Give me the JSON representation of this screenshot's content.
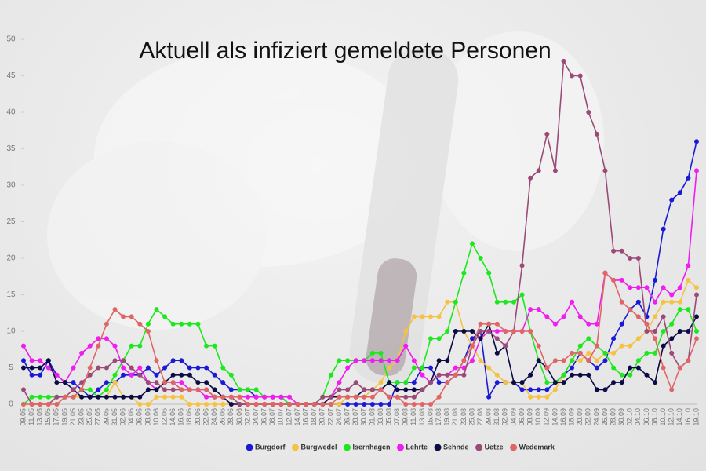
{
  "chart_data": {
    "type": "line",
    "title": "Aktuell als infiziert gemeldete Personen",
    "categories": [
      "09.05",
      "11.05",
      "13.05",
      "15.05",
      "17.05",
      "19.05",
      "21.05",
      "23.05",
      "25.05",
      "27.05",
      "29.05",
      "31.05",
      "02.06",
      "04.06",
      "06.06",
      "08.06",
      "10.06",
      "12.06",
      "14.06",
      "16.06",
      "18.06",
      "20.06",
      "22.06",
      "24.06",
      "26.06",
      "28.06",
      "30.06",
      "02.07",
      "04.07",
      "06.07",
      "08.07",
      "10.07",
      "12.07",
      "14.07",
      "16.07",
      "18.07",
      "20.07",
      "22.07",
      "24.07",
      "26.07",
      "28.07",
      "30.07",
      "01.08",
      "03.08",
      "05.08",
      "07.08",
      "09.08",
      "11.08",
      "13.08",
      "15.08",
      "17.08",
      "19.08",
      "21.08",
      "23.08",
      "25.08",
      "27.08",
      "29.08",
      "31.08",
      "02.09",
      "04.09",
      "06.09",
      "08.09",
      "10.09",
      "12.09",
      "14.09",
      "16.09",
      "18.09",
      "20.09",
      "22.09",
      "24.09",
      "26.09",
      "28.09",
      "30.09",
      "02.10",
      "04.10",
      "06.10",
      "08.10",
      "10.10",
      "12.10",
      "14.10",
      "16.10",
      "19.10"
    ],
    "series": [
      {
        "name": "Burgdorf",
        "color": "#1a1ad6",
        "values": [
          6,
          4,
          4,
          6,
          4,
          3,
          3,
          2,
          1,
          2,
          3,
          3,
          4,
          4,
          4,
          5,
          4,
          5,
          6,
          6,
          5,
          5,
          5,
          4,
          3,
          2,
          2,
          2,
          1,
          1,
          1,
          1,
          0,
          0,
          0,
          0,
          0,
          0,
          0,
          0,
          0,
          0,
          0,
          0,
          0,
          3,
          3,
          3,
          5,
          5,
          3,
          3,
          4,
          6,
          9,
          10,
          1,
          3,
          3,
          3,
          2,
          2,
          2,
          2,
          3,
          4,
          5,
          7,
          6,
          5,
          6,
          9,
          11,
          13,
          14,
          12,
          17,
          24,
          28,
          29,
          31,
          36
        ]
      },
      {
        "name": "Burgwedel",
        "color": "#f5c242",
        "values": [
          0,
          0,
          0,
          0,
          0,
          1,
          1,
          1,
          1,
          1,
          1,
          3,
          1,
          1,
          0,
          0,
          1,
          1,
          1,
          1,
          0,
          0,
          0,
          0,
          0,
          0,
          0,
          0,
          0,
          0,
          0,
          0,
          0,
          0,
          0,
          0,
          0,
          0,
          0,
          1,
          1,
          1,
          2,
          3,
          5,
          6,
          10,
          12,
          12,
          12,
          12,
          14,
          14,
          10,
          8,
          6,
          5,
          4,
          3,
          3,
          3,
          1,
          1,
          1,
          2,
          4,
          6,
          6,
          7,
          6,
          7,
          7,
          8,
          8,
          9,
          10,
          12,
          14,
          14,
          14,
          17,
          16
        ]
      },
      {
        "name": "Isernhagen",
        "color": "#1de81d",
        "values": [
          0,
          1,
          1,
          1,
          1,
          1,
          1,
          2,
          2,
          1,
          2,
          4,
          6,
          8,
          8,
          11,
          13,
          12,
          11,
          11,
          11,
          11,
          8,
          8,
          5,
          4,
          2,
          2,
          2,
          1,
          1,
          1,
          0,
          0,
          0,
          0,
          1,
          4,
          6,
          6,
          6,
          6,
          7,
          7,
          3,
          3,
          3,
          5,
          5,
          9,
          9,
          10,
          14,
          18,
          22,
          20,
          18,
          14,
          14,
          14,
          15,
          10,
          6,
          3,
          3,
          4,
          6,
          8,
          9,
          8,
          7,
          5,
          4,
          4,
          6,
          7,
          7,
          10,
          11,
          13,
          13,
          10
        ]
      },
      {
        "name": "Lehrte",
        "color": "#f01cf0",
        "values": [
          8,
          6,
          6,
          5,
          4,
          3,
          5,
          7,
          8,
          9,
          9,
          8,
          5,
          4,
          5,
          3,
          2,
          3,
          3,
          3,
          2,
          2,
          1,
          1,
          1,
          1,
          1,
          1,
          1,
          1,
          1,
          1,
          1,
          0,
          0,
          0,
          0,
          1,
          3,
          5,
          6,
          6,
          6,
          6,
          6,
          6,
          8,
          6,
          4,
          3,
          4,
          4,
          5,
          5,
          6,
          9,
          10,
          10,
          10,
          10,
          10,
          13,
          13,
          12,
          11,
          12,
          14,
          12,
          11,
          11,
          18,
          17,
          17,
          16,
          16,
          16,
          14,
          16,
          15,
          16,
          19,
          32
        ]
      },
      {
        "name": "Sehnde",
        "color": "#0b0b45",
        "values": [
          5,
          5,
          5,
          6,
          3,
          3,
          2,
          1,
          1,
          1,
          1,
          1,
          1,
          1,
          1,
          2,
          2,
          3,
          4,
          4,
          4,
          3,
          3,
          2,
          1,
          0,
          0,
          0,
          0,
          0,
          0,
          0,
          0,
          0,
          0,
          0,
          0,
          1,
          1,
          1,
          1,
          2,
          2,
          2,
          3,
          2,
          2,
          2,
          2,
          3,
          6,
          6,
          10,
          10,
          10,
          9,
          11,
          7,
          8,
          3,
          3,
          4,
          6,
          5,
          3,
          3,
          4,
          4,
          4,
          2,
          2,
          3,
          3,
          5,
          5,
          4,
          3,
          8,
          9,
          10,
          10,
          12
        ]
      },
      {
        "name": "Uetze",
        "color": "#9b4a78",
        "values": [
          2,
          0,
          0,
          0,
          1,
          1,
          2,
          3,
          4,
          5,
          5,
          6,
          6,
          5,
          4,
          3,
          3,
          2,
          2,
          2,
          2,
          2,
          2,
          1,
          1,
          1,
          0,
          0,
          0,
          0,
          0,
          0,
          0,
          0,
          0,
          0,
          1,
          1,
          2,
          2,
          3,
          2,
          2,
          2,
          1,
          1,
          1,
          1,
          2,
          3,
          4,
          4,
          4,
          4,
          8,
          10,
          10,
          9,
          8,
          10,
          19,
          31,
          32,
          37,
          32,
          47,
          45,
          45,
          40,
          37,
          32,
          21,
          21,
          20,
          20,
          10,
          10,
          12,
          7,
          5,
          6,
          15
        ]
      },
      {
        "name": "Wedemark",
        "color": "#e06666",
        "values": [
          0,
          0,
          0,
          0,
          0,
          1,
          1,
          2,
          5,
          8,
          11,
          13,
          12,
          12,
          11,
          10,
          6,
          3,
          3,
          2,
          2,
          2,
          2,
          1,
          1,
          1,
          1,
          0,
          0,
          0,
          0,
          0,
          0,
          0,
          0,
          0,
          0,
          0,
          1,
          1,
          1,
          1,
          1,
          2,
          1,
          1,
          0,
          0,
          0,
          0,
          1,
          3,
          4,
          6,
          8,
          11,
          11,
          11,
          10,
          10,
          10,
          10,
          8,
          5,
          6,
          6,
          7,
          7,
          6,
          8,
          18,
          17,
          14,
          13,
          12,
          11,
          9,
          5,
          2,
          5,
          6,
          9
        ]
      }
    ],
    "ylim": [
      0,
      50
    ],
    "yticks": [
      0,
      5,
      10,
      15,
      20,
      25,
      30,
      35,
      40,
      45,
      50
    ],
    "legend": "bottom"
  }
}
